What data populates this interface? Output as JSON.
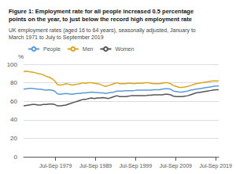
{
  "chart_data": {
    "type": "line",
    "title": "Figure 1: Employment rate for all people increased 0.5 percentage\npoints on the year, to just below the record high employment rate",
    "subtitle": "UK employment rates (aged 16 to 64 years), seasonally adjusted, January to\nMarch 1971 to July to September 2019",
    "ylabel": "%",
    "x": [
      1971,
      1971.7065,
      1972.413,
      1973.1196,
      1973.8261,
      1974.5326,
      1975.2391,
      1975.9457,
      1976.6522,
      1977.3587,
      1978.0652,
      1978.7717,
      1979.4783,
      1980.1848,
      1980.8913,
      1981.5978,
      1982.3043,
      1983.0109,
      1983.7174,
      1984.4239,
      1985.1304,
      1985.837,
      1986.5435,
      1987.25,
      1987.9565,
      1988.663,
      1989.3696,
      1990.0761,
      1990.7826,
      1991.4891,
      1992.1957,
      1992.9022,
      1993.6087,
      1994.3152,
      1995.0217,
      1995.7283,
      1996.4348,
      1997.1413,
      1997.8478,
      1998.5543,
      1999.2609,
      1999.9674,
      2000.6739,
      2001.3804,
      2002.087,
      2002.7935,
      2003.5,
      2004.2065,
      2004.913,
      2005.6196,
      2006.3261,
      2007.0326,
      2007.7391,
      2008.4457,
      2009.1522,
      2009.8587,
      2010.5652,
      2011.2717,
      2011.9783,
      2012.6848,
      2013.3913,
      2014.0978,
      2014.8043,
      2015.5109,
      2016.2174,
      2016.9239,
      2017.6304,
      2018.337,
      2019.0435,
      2019.75
    ],
    "series": [
      {
        "name": "People",
        "color": "#5b9bd5",
        "values": [
          73,
          73.5,
          74,
          74,
          73.5,
          73,
          73,
          72.5,
          72,
          72.5,
          72,
          71,
          68,
          67.5,
          68,
          68.5,
          68,
          67.5,
          68,
          68.5,
          68.5,
          69,
          69,
          69.5,
          70,
          69.5,
          69.5,
          69,
          69,
          68.5,
          69,
          69.5,
          70,
          71,
          71,
          71,
          71.5,
          71.5,
          71.5,
          71.5,
          72,
          72,
          72,
          72,
          72,
          72,
          72.5,
          72.5,
          72.5,
          73,
          73.5,
          73.5,
          73,
          71,
          70.5,
          70,
          70,
          70.5,
          71,
          72,
          72.5,
          73,
          73.5,
          74,
          74.5,
          75,
          75.5,
          76,
          76.5,
          76.5
        ]
      },
      {
        "name": "Men",
        "color": "#daa520",
        "values": [
          92,
          92.5,
          92,
          91.5,
          91,
          90,
          89.5,
          88.5,
          87,
          86,
          84.5,
          82,
          78,
          77.5,
          78,
          79,
          78.5,
          77.5,
          78,
          78.5,
          79,
          80,
          79.5,
          80,
          80,
          79.5,
          79,
          78.5,
          77,
          76,
          77,
          78,
          79,
          80,
          79,
          79,
          79,
          79.5,
          79.5,
          79,
          79.5,
          79.5,
          79.5,
          80,
          80,
          79.5,
          79,
          79,
          79,
          79.5,
          80,
          80,
          79,
          77,
          76,
          75,
          75,
          75.5,
          76,
          77,
          78,
          79,
          79.5,
          80,
          80.5,
          81,
          81.5,
          82,
          82,
          82
        ]
      },
      {
        "name": "Women",
        "color": "#555555",
        "values": [
          55,
          55.5,
          56,
          56.5,
          56.5,
          56,
          56,
          56.5,
          56.5,
          57,
          57,
          56.5,
          55,
          55,
          55.5,
          56,
          57,
          58,
          59,
          60,
          61,
          62,
          62,
          63,
          63.5,
          63,
          63.5,
          63.5,
          64,
          63.5,
          63,
          64,
          65,
          66,
          65,
          65,
          65,
          65.5,
          66,
          66,
          66,
          66,
          66,
          66,
          66.5,
          66.5,
          67,
          67,
          67,
          67,
          67.5,
          67.5,
          67,
          65.5,
          65,
          65,
          65,
          65.5,
          66,
          67,
          68,
          69,
          69.5,
          70,
          70.5,
          71,
          71.5,
          72,
          72.5,
          72.5
        ]
      }
    ],
    "xlim": [
      1971,
      2019.75
    ],
    "xticks": [
      {
        "value": 1979,
        "label": "Jul-Sep 1979"
      },
      {
        "value": 1989,
        "label": "Jul-Sep 1989"
      },
      {
        "value": 1999,
        "label": "Jul-Sep 1999"
      },
      {
        "value": 2009,
        "label": "Jul-Sep 2009"
      },
      {
        "value": 2019,
        "label": "Jul-Sep 2019"
      }
    ],
    "ylim": [
      0,
      100
    ],
    "yticks": [
      0,
      20,
      40,
      60,
      80,
      100
    ],
    "grid": "y",
    "legend": "upper left"
  }
}
